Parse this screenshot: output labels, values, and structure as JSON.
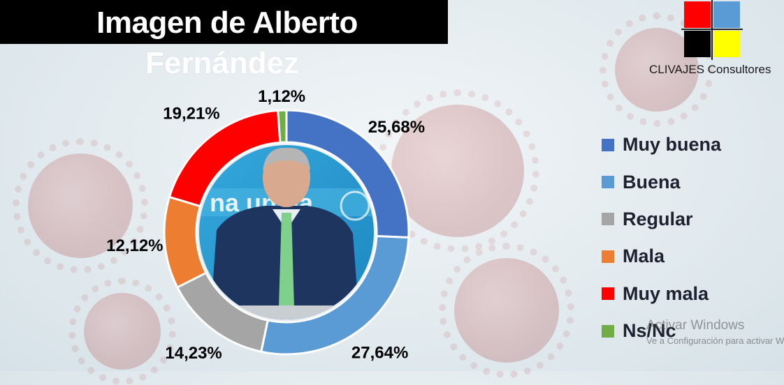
{
  "header": {
    "title_line1": "Imagen de Alberto",
    "title_line2": "Fernández"
  },
  "brand": {
    "name": "CLIVAJES Consultores",
    "logo_colors": [
      "#ff0000",
      "#5b9bd5",
      "#000000",
      "#ffff00"
    ]
  },
  "chart_data": {
    "type": "pie",
    "style": "donut",
    "title": "",
    "categories": [
      "Muy buena",
      "Buena",
      "Regular",
      "Mala",
      "Muy mala",
      "Ns/Nc"
    ],
    "values": [
      25.68,
      27.64,
      14.23,
      12.12,
      19.21,
      1.12
    ],
    "labels": [
      "25,68%",
      "27,64%",
      "14,23%",
      "12,12%",
      "19,21%",
      "1,12%"
    ],
    "colors": [
      "#4472c4",
      "#5b9bd5",
      "#a5a5a5",
      "#ed7d31",
      "#ff0000",
      "#70ad47"
    ],
    "legend_position": "right",
    "center_image": "photo of speaker at podium"
  },
  "watermark": {
    "line1": "Activar Windows",
    "line2": "Ve a Configuración para activar Windows."
  }
}
